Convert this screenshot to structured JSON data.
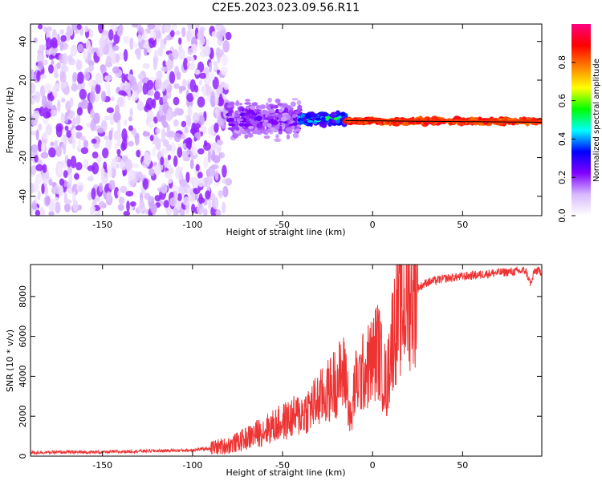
{
  "title": "C2E5.2023.023.09.56.R11",
  "chart_data": [
    {
      "type": "heatmap",
      "xlabel": "Height of straight line (km)",
      "ylabel": "Frequency (Hz)",
      "xlim": [
        -190,
        94
      ],
      "ylim": [
        -50,
        49
      ],
      "xticks": [
        -150,
        -100,
        -50,
        0,
        50
      ],
      "yticks": [
        -40,
        -20,
        0,
        20,
        40
      ],
      "colorbar": {
        "label": "Normalized spectral amplitude",
        "range": [
          0,
          1
        ],
        "ticks": [
          0.0,
          0.2,
          0.4,
          0.6,
          0.8
        ],
        "colors": [
          "#ffffff",
          "#d8b8ff",
          "#8000ff",
          "#0000ff",
          "#00ffff",
          "#00ff00",
          "#ffff00",
          "#ff8000",
          "#ff0000",
          "#ff0080"
        ]
      },
      "description_bands": [
        {
          "x_range": [
            -190,
            -80
          ],
          "f_spread": 49,
          "amplitude": 0.1
        },
        {
          "x_range": [
            -80,
            -40
          ],
          "f_spread": 12,
          "amplitude": 0.2
        },
        {
          "x_range": [
            -40,
            -15
          ],
          "f_spread": 4,
          "amplitude": 0.4
        },
        {
          "x_range": [
            -15,
            94
          ],
          "f_spread": 2,
          "amplitude": 0.85
        }
      ]
    },
    {
      "type": "line",
      "xlabel": "Height of straight line (km)",
      "ylabel": "SNR (10 * v/v)",
      "xlim": [
        -190,
        94
      ],
      "ylim": [
        0,
        9600
      ],
      "xticks": [
        -150,
        -100,
        -50,
        0,
        50
      ],
      "yticks": [
        0,
        2000,
        4000,
        6000,
        8000
      ],
      "line_color": "#ee3333",
      "x": [
        -190,
        -170,
        -150,
        -130,
        -110,
        -100,
        -90,
        -80,
        -75,
        -70,
        -65,
        -60,
        -55,
        -50,
        -45,
        -40,
        -35,
        -30,
        -25,
        -20,
        -15,
        -12,
        -10,
        -5,
        0,
        3,
        5,
        8,
        10,
        12,
        15,
        20,
        25,
        30,
        40,
        50,
        60,
        70,
        80,
        85,
        88,
        90,
        94
      ],
      "y": [
        180,
        200,
        200,
        250,
        280,
        300,
        400,
        550,
        700,
        900,
        1100,
        1300,
        1500,
        1700,
        1900,
        2100,
        2400,
        2800,
        3200,
        3800,
        4200,
        1500,
        3500,
        4200,
        4800,
        5500,
        4500,
        3500,
        5500,
        6500,
        7200,
        7900,
        8400,
        8700,
        8900,
        9000,
        9100,
        9200,
        9250,
        9300,
        8600,
        9300,
        9250
      ]
    }
  ]
}
